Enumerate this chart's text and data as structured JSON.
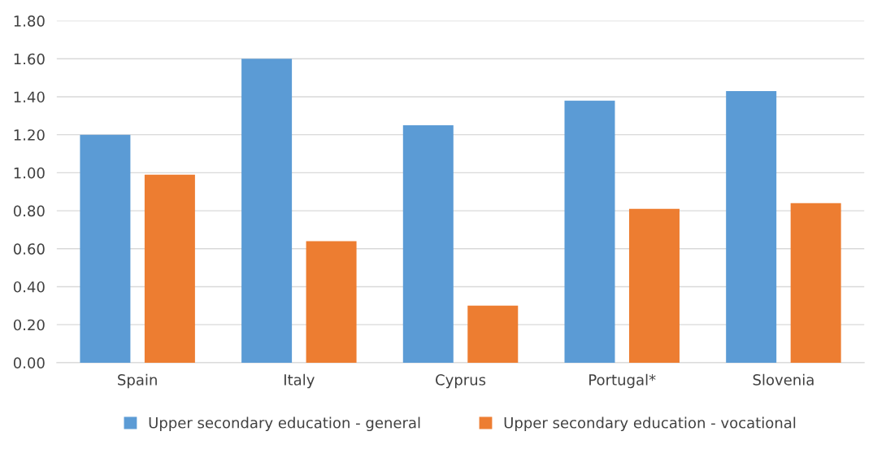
{
  "chart_data": {
    "type": "bar",
    "categories": [
      "Spain",
      "Italy",
      "Cyprus",
      "Portugal*",
      "Slovenia"
    ],
    "series": [
      {
        "name": "Upper secondary education - general",
        "color": "#5b9bd5",
        "values": [
          1.2,
          1.6,
          1.25,
          1.38,
          1.43
        ]
      },
      {
        "name": "Upper secondary education - vocational",
        "color": "#ed7d31",
        "values": [
          0.99,
          0.64,
          0.3,
          0.81,
          0.84
        ]
      }
    ],
    "ylim": [
      0,
      1.8
    ],
    "yticks": [
      {
        "value": 0,
        "label": "0.00"
      },
      {
        "value": 0.2,
        "label": "0.20"
      },
      {
        "value": 0.4,
        "label": "0.40"
      },
      {
        "value": 0.6,
        "label": "0.60"
      },
      {
        "value": 0.8,
        "label": "0.80"
      },
      {
        "value": 1.0,
        "label": "1.00"
      },
      {
        "value": 1.2,
        "label": "1.20"
      },
      {
        "value": 1.4,
        "label": "1.40"
      },
      {
        "value": 1.6,
        "label": "1.60"
      },
      {
        "value": 1.8,
        "label": "1.80"
      }
    ],
    "grid": "y",
    "legend": "bottom"
  }
}
